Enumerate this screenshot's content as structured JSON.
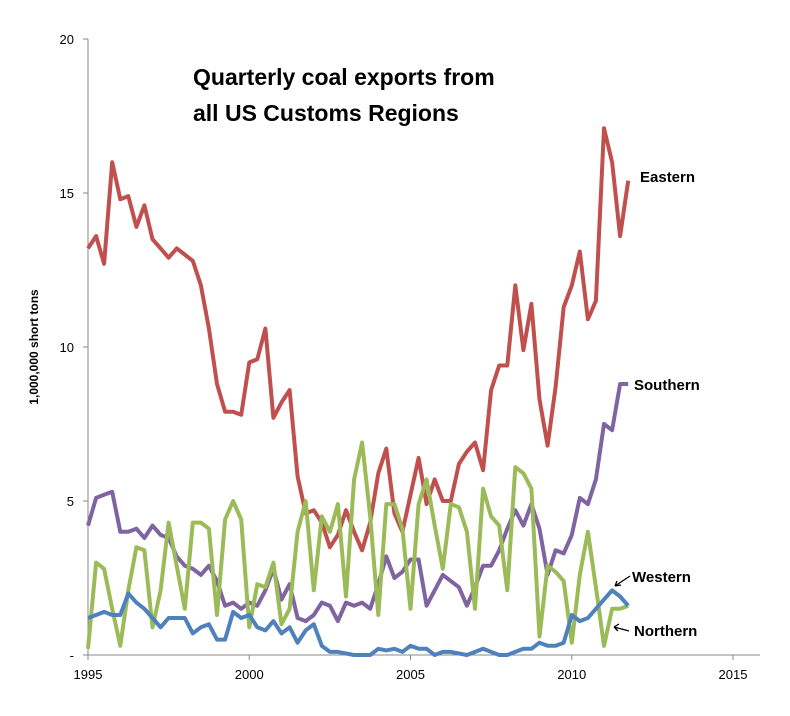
{
  "chart_data": {
    "type": "line",
    "title": [
      "Quarterly coal exports from",
      "all US Customs Regions"
    ],
    "xlabel": "",
    "ylabel": "1,000,000 short tons",
    "xlim": [
      1995,
      2015
    ],
    "ylim": [
      0,
      20
    ],
    "x_ticks": [
      "1995",
      "2000",
      "2005",
      "2010",
      "2015"
    ],
    "y_ticks": [
      "-",
      "5",
      "10",
      "15",
      "20"
    ],
    "grid": false,
    "x_start": "1995 Q1",
    "frequency": "quarterly",
    "series": [
      {
        "name": "Eastern",
        "color": "#C0504D",
        "values": [
          13.2,
          13.6,
          12.7,
          16.0,
          14.8,
          14.9,
          13.9,
          14.6,
          13.5,
          13.2,
          12.9,
          13.2,
          13.0,
          12.8,
          12.0,
          10.6,
          8.8,
          7.9,
          7.9,
          7.8,
          9.5,
          9.6,
          10.6,
          7.7,
          8.2,
          8.6,
          5.8,
          4.6,
          4.7,
          4.3,
          3.5,
          3.9,
          4.7,
          4.0,
          3.4,
          4.3,
          5.9,
          6.7,
          4.6,
          4.0,
          5.2,
          6.4,
          4.9,
          5.7,
          5.0,
          5.0,
          6.2,
          6.6,
          6.9,
          6.0,
          8.6,
          9.4,
          9.4,
          12.0,
          9.9,
          11.4,
          8.3,
          6.8,
          8.7,
          11.3,
          12.0,
          13.1,
          10.9,
          11.5,
          17.1,
          16.0,
          13.6,
          15.4
        ]
      },
      {
        "name": "Southern",
        "color": "#8064A2",
        "values": [
          4.2,
          5.1,
          5.2,
          5.3,
          4.0,
          4.0,
          4.1,
          3.8,
          4.2,
          3.9,
          3.8,
          3.2,
          2.9,
          2.8,
          2.6,
          2.9,
          2.4,
          1.6,
          1.7,
          1.5,
          1.7,
          1.6,
          2.1,
          2.8,
          1.8,
          2.3,
          1.2,
          1.1,
          1.3,
          1.7,
          1.6,
          1.1,
          1.7,
          1.6,
          1.7,
          1.5,
          2.3,
          3.2,
          2.5,
          2.7,
          3.1,
          3.1,
          1.6,
          2.1,
          2.6,
          2.4,
          2.2,
          1.6,
          2.2,
          2.9,
          2.9,
          3.4,
          4.1,
          4.7,
          4.2,
          4.9,
          4.1,
          2.6,
          3.4,
          3.3,
          3.9,
          5.1,
          4.9,
          5.7,
          7.5,
          7.3,
          8.8,
          8.8
        ]
      },
      {
        "name": "Northern",
        "color": "#9BBB59",
        "values": [
          0.2,
          3.0,
          2.8,
          1.5,
          0.3,
          2.1,
          3.5,
          3.4,
          0.9,
          2.1,
          4.3,
          2.9,
          1.5,
          4.3,
          4.3,
          4.1,
          1.3,
          4.4,
          5.0,
          4.4,
          0.9,
          2.3,
          2.2,
          3.0,
          1.0,
          1.5,
          4.0,
          5.0,
          2.1,
          4.5,
          4.0,
          4.9,
          1.9,
          5.7,
          6.9,
          4.5,
          1.3,
          4.9,
          4.9,
          4.1,
          1.5,
          4.9,
          5.7,
          4.2,
          2.8,
          4.9,
          4.8,
          4.0,
          1.5,
          5.4,
          4.5,
          4.2,
          2.1,
          6.1,
          5.9,
          5.4,
          0.6,
          2.9,
          2.7,
          2.4,
          0.4,
          2.6,
          4.0,
          2.2,
          0.3,
          1.5,
          1.5,
          1.6
        ]
      },
      {
        "name": "Western",
        "color": "#4F81BD",
        "values": [
          1.2,
          1.3,
          1.4,
          1.3,
          1.3,
          2.0,
          1.7,
          1.5,
          1.2,
          0.9,
          1.2,
          1.2,
          1.2,
          0.7,
          0.9,
          1.0,
          0.5,
          0.5,
          1.4,
          1.2,
          1.3,
          0.9,
          0.8,
          1.1,
          0.7,
          0.9,
          0.4,
          0.8,
          1.0,
          0.3,
          0.1,
          0.1,
          0.05,
          0.0,
          0.0,
          0.0,
          0.2,
          0.15,
          0.2,
          0.1,
          0.3,
          0.2,
          0.2,
          0.0,
          0.1,
          0.1,
          0.05,
          0.0,
          0.1,
          0.2,
          0.1,
          0.0,
          0.0,
          0.1,
          0.2,
          0.2,
          0.4,
          0.3,
          0.3,
          0.4,
          1.3,
          1.1,
          1.2,
          1.5,
          1.8,
          2.1,
          1.9,
          1.6
        ]
      }
    ]
  }
}
